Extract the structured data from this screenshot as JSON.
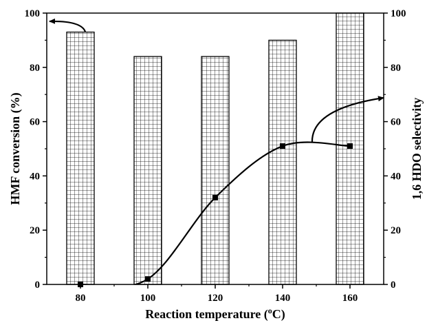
{
  "chart_data": {
    "type": "bar",
    "xlabel_main": "Reaction temperature (",
    "xlabel_sup": "o",
    "xlabel_end": "C)",
    "ylabel_left": "HMF conversion (%)",
    "ylabel_right": "1,6 HDO selectivity",
    "categories": [
      "80",
      "100",
      "120",
      "140",
      "160"
    ],
    "x": [
      80,
      100,
      120,
      140,
      160
    ],
    "xlim": [
      70,
      170
    ],
    "ylim_left": [
      0,
      100
    ],
    "ylim_right": [
      0,
      100
    ],
    "yticks": [
      0,
      20,
      40,
      60,
      80,
      100
    ],
    "series": [
      {
        "axis": "left",
        "style": "hatched-bar",
        "values": [
          93,
          84,
          84,
          90,
          100
        ]
      },
      {
        "axis": "right",
        "style": "line-square-markers",
        "values": [
          0,
          2,
          32,
          51,
          51
        ]
      }
    ],
    "grid": false,
    "colors": {
      "ink": "#000000",
      "background": "#ffffff"
    }
  }
}
